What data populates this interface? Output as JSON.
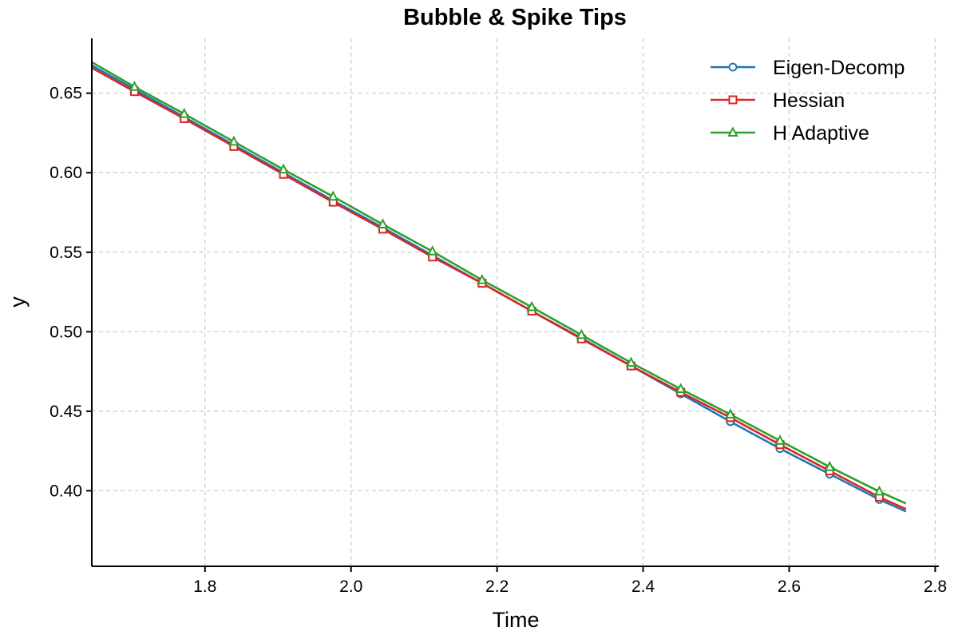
{
  "chart_data": {
    "type": "line",
    "title": "Bubble & Spike Tips",
    "xlabel": "Time",
    "ylabel": "y",
    "xlim": [
      1.645,
      2.805
    ],
    "ylim": [
      0.3525,
      0.6845
    ],
    "xticks": [
      "1.8",
      "2.0",
      "2.2",
      "2.4",
      "2.6",
      "2.8"
    ],
    "yticks": [
      "0.40",
      "0.45",
      "0.50",
      "0.55",
      "0.60",
      "0.65"
    ],
    "grid": true,
    "legend_position": "top-right",
    "x": [
      1.645,
      1.7035,
      1.7715,
      1.8395,
      1.9075,
      1.9755,
      2.0435,
      2.1115,
      2.1795,
      2.2475,
      2.3155,
      2.3835,
      2.4515,
      2.5195,
      2.5875,
      2.6555,
      2.7235,
      2.76
    ],
    "series": [
      {
        "name": "Eigen-Decomp",
        "color": "#1f77b4",
        "marker": "circle",
        "values": [
          0.6675,
          0.6525,
          0.635,
          0.6175,
          0.6,
          0.5825,
          0.5655,
          0.548,
          0.5305,
          0.513,
          0.496,
          0.4785,
          0.461,
          0.4435,
          0.4265,
          0.4105,
          0.3945,
          0.387
        ]
      },
      {
        "name": "Hessian",
        "color": "#d62728",
        "marker": "square",
        "values": [
          0.666,
          0.651,
          0.634,
          0.6165,
          0.599,
          0.5815,
          0.5645,
          0.547,
          0.5305,
          0.513,
          0.4955,
          0.4785,
          0.462,
          0.446,
          0.429,
          0.4125,
          0.396,
          0.3885
        ]
      },
      {
        "name": "H Adaptive",
        "color": "#2ca02c",
        "marker": "triangle",
        "values": [
          0.6695,
          0.654,
          0.637,
          0.6195,
          0.602,
          0.585,
          0.5675,
          0.5505,
          0.5325,
          0.5155,
          0.498,
          0.4805,
          0.464,
          0.448,
          0.4315,
          0.415,
          0.3995,
          0.392
        ]
      }
    ]
  }
}
